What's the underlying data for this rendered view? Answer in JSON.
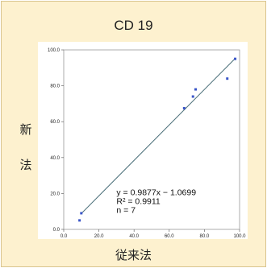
{
  "page": {
    "title": "CD 19",
    "ylabel_chars": [
      "新",
      "法"
    ],
    "xlabel": "従来法"
  },
  "chart_data": {
    "type": "scatter",
    "title": "CD 19",
    "xlabel": "従来法",
    "ylabel": "新法",
    "xlim": [
      0,
      100
    ],
    "ylim": [
      0,
      100
    ],
    "xticks": [
      "0.0",
      "20.0",
      "40.0",
      "60.0",
      "80.0",
      "100.0"
    ],
    "yticks": [
      "0.0",
      "20.0",
      "40.0",
      "60.0",
      "80.0",
      "100.0"
    ],
    "points": [
      {
        "x": 9,
        "y": 5
      },
      {
        "x": 10,
        "y": 9
      },
      {
        "x": 68.5,
        "y": 67.5
      },
      {
        "x": 73.5,
        "y": 74
      },
      {
        "x": 75,
        "y": 78
      },
      {
        "x": 93,
        "y": 84
      },
      {
        "x": 97.5,
        "y": 95
      }
    ],
    "trendline": {
      "slope": 0.9877,
      "intercept": -1.0699,
      "x_range": [
        10,
        97.5
      ]
    },
    "annotations": [
      "y = 0.9877x − 1.0699",
      "R² = 0.9911",
      "n = 7"
    ],
    "grid": false,
    "colors": {
      "points": "#3a55c8",
      "line": "#4a6e78",
      "background": "#fdf1cf"
    }
  }
}
